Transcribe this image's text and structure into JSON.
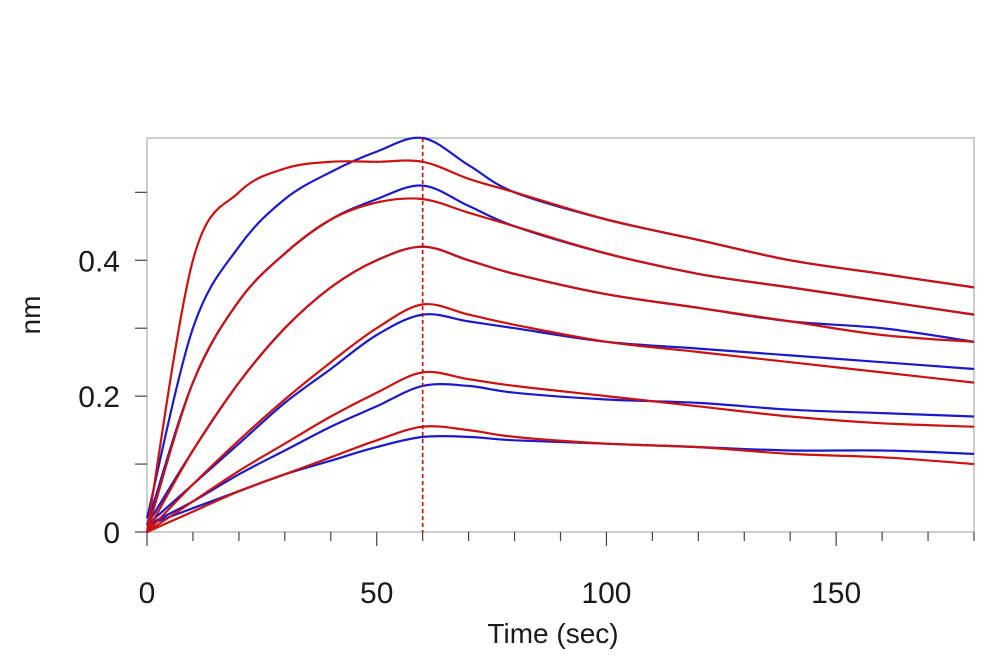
{
  "chart_data": {
    "type": "line",
    "title": "",
    "xlabel": "Time (sec)",
    "ylabel": "nm",
    "xlim": [
      0,
      180
    ],
    "ylim": [
      0,
      0.58
    ],
    "x_ticks": [
      0,
      50,
      100,
      150
    ],
    "x_tick_labels": [
      "0",
      "50",
      "100",
      "150"
    ],
    "y_ticks": [
      0,
      0.2,
      0.4
    ],
    "y_tick_labels": [
      "0",
      "0.2",
      "0.4"
    ],
    "grid": false,
    "legend": "none",
    "association_end_marker": {
      "x": 60,
      "color": "#cc0000",
      "style": "dashed"
    },
    "series_colors": {
      "measured": "#1a1acc",
      "fit": "#cc1111"
    },
    "measured": [
      {
        "x": [
          0,
          10,
          20,
          30,
          40,
          50,
          60,
          70,
          80,
          100,
          120,
          140,
          160,
          180
        ],
        "y": [
          0.02,
          0.3,
          0.42,
          0.49,
          0.53,
          0.56,
          0.58,
          0.54,
          0.5,
          0.46,
          0.43,
          0.4,
          0.38,
          0.36
        ]
      },
      {
        "x": [
          0,
          10,
          20,
          30,
          40,
          50,
          60,
          70,
          80,
          100,
          120,
          140,
          160,
          180
        ],
        "y": [
          0.01,
          0.22,
          0.34,
          0.41,
          0.46,
          0.49,
          0.51,
          0.48,
          0.45,
          0.41,
          0.38,
          0.36,
          0.34,
          0.32
        ]
      },
      {
        "x": [
          0,
          10,
          20,
          30,
          40,
          50,
          60,
          70,
          80,
          100,
          120,
          140,
          160,
          180
        ],
        "y": [
          0.01,
          0.12,
          0.22,
          0.3,
          0.36,
          0.4,
          0.42,
          0.4,
          0.38,
          0.35,
          0.33,
          0.31,
          0.3,
          0.28
        ]
      },
      {
        "x": [
          0,
          10,
          20,
          30,
          40,
          50,
          60,
          70,
          80,
          100,
          120,
          140,
          160,
          180
        ],
        "y": [
          0.01,
          0.07,
          0.13,
          0.19,
          0.24,
          0.29,
          0.32,
          0.31,
          0.3,
          0.28,
          0.27,
          0.26,
          0.25,
          0.24
        ]
      },
      {
        "x": [
          0,
          10,
          20,
          30,
          40,
          50,
          60,
          70,
          80,
          100,
          120,
          140,
          160,
          180
        ],
        "y": [
          0.01,
          0.045,
          0.085,
          0.12,
          0.155,
          0.185,
          0.215,
          0.215,
          0.205,
          0.195,
          0.19,
          0.18,
          0.175,
          0.17
        ]
      },
      {
        "x": [
          0,
          10,
          20,
          30,
          40,
          50,
          60,
          70,
          80,
          100,
          120,
          140,
          160,
          180
        ],
        "y": [
          0.01,
          0.035,
          0.06,
          0.085,
          0.105,
          0.125,
          0.14,
          0.14,
          0.135,
          0.13,
          0.125,
          0.12,
          0.12,
          0.115
        ]
      }
    ],
    "fit": [
      {
        "x": [
          0,
          10,
          20,
          30,
          40,
          50,
          60,
          70,
          80,
          100,
          120,
          140,
          160,
          180
        ],
        "y": [
          0.0,
          0.4,
          0.5,
          0.535,
          0.545,
          0.545,
          0.545,
          0.52,
          0.5,
          0.46,
          0.43,
          0.4,
          0.38,
          0.36
        ]
      },
      {
        "x": [
          0,
          10,
          20,
          30,
          40,
          50,
          60,
          70,
          80,
          100,
          120,
          140,
          160,
          180
        ],
        "y": [
          0.0,
          0.22,
          0.34,
          0.41,
          0.46,
          0.485,
          0.49,
          0.47,
          0.45,
          0.41,
          0.38,
          0.36,
          0.34,
          0.32
        ]
      },
      {
        "x": [
          0,
          10,
          20,
          30,
          40,
          50,
          60,
          70,
          80,
          100,
          120,
          140,
          160,
          180
        ],
        "y": [
          0.0,
          0.12,
          0.22,
          0.3,
          0.36,
          0.4,
          0.42,
          0.4,
          0.38,
          0.35,
          0.33,
          0.31,
          0.29,
          0.28
        ]
      },
      {
        "x": [
          0,
          10,
          20,
          30,
          40,
          50,
          60,
          70,
          80,
          100,
          120,
          140,
          160,
          180
        ],
        "y": [
          0.0,
          0.07,
          0.135,
          0.195,
          0.25,
          0.3,
          0.335,
          0.32,
          0.305,
          0.28,
          0.265,
          0.25,
          0.235,
          0.22
        ]
      },
      {
        "x": [
          0,
          10,
          20,
          30,
          40,
          50,
          60,
          70,
          80,
          100,
          120,
          140,
          160,
          180
        ],
        "y": [
          0.0,
          0.045,
          0.09,
          0.13,
          0.17,
          0.205,
          0.235,
          0.225,
          0.215,
          0.2,
          0.185,
          0.17,
          0.16,
          0.155
        ]
      },
      {
        "x": [
          0,
          10,
          20,
          30,
          40,
          50,
          60,
          70,
          80,
          100,
          120,
          140,
          160,
          180
        ],
        "y": [
          0.0,
          0.03,
          0.06,
          0.085,
          0.11,
          0.135,
          0.155,
          0.15,
          0.14,
          0.13,
          0.125,
          0.115,
          0.11,
          0.1
        ]
      }
    ]
  }
}
